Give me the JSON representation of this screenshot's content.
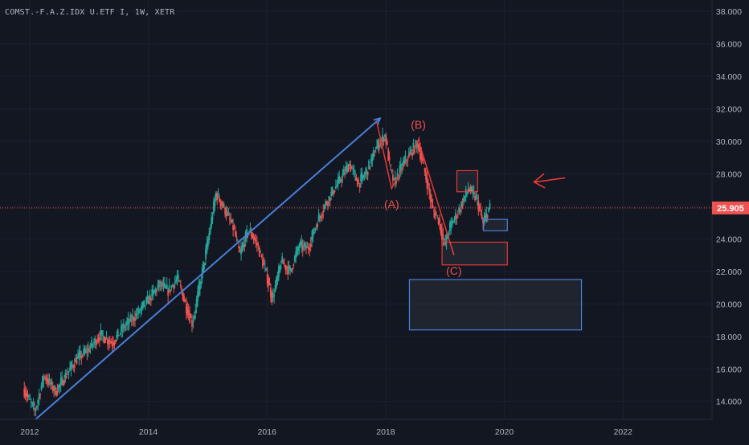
{
  "header": {
    "symbol_line": "COMST.-F.A.Z.IDX U.ETF I, 1W, XETR"
  },
  "colors": {
    "background": "#131722",
    "axis_text": "#b2b5be",
    "candle_up": "#26a69a",
    "candle_down": "#ef5350",
    "price_line": "#ef5350",
    "annotation_red": "#e53935",
    "annotation_blue": "#4a7fd8",
    "price_tag": "#ef5350"
  },
  "chart_data": {
    "type": "candlestick",
    "title": "COMST.-F.A.Z.IDX U.ETF I, 1W, XETR",
    "xlabel": "",
    "ylabel": "",
    "x_ticks": [
      "2012",
      "2014",
      "2016",
      "2018",
      "2020",
      "2022"
    ],
    "y_ticks": [
      "14.000",
      "16.000",
      "18.000",
      "20.000",
      "22.000",
      "24.000",
      "26.000",
      "28.000",
      "30.000",
      "32.000",
      "34.000",
      "36.000",
      "38.000"
    ],
    "xlim": [
      2011.5,
      2023.5
    ],
    "ylim": [
      12.9,
      38.7
    ],
    "last_price": "25.905",
    "price_path": [
      [
        2011.9,
        14.8
      ],
      [
        2012.1,
        13.4
      ],
      [
        2012.25,
        15.6
      ],
      [
        2012.45,
        14.6
      ],
      [
        2012.6,
        15.5
      ],
      [
        2012.8,
        16.6
      ],
      [
        2013.0,
        17.2
      ],
      [
        2013.2,
        18.1
      ],
      [
        2013.4,
        17.6
      ],
      [
        2013.6,
        18.6
      ],
      [
        2013.8,
        19.3
      ],
      [
        2014.0,
        20.2
      ],
      [
        2014.2,
        21.2
      ],
      [
        2014.35,
        20.8
      ],
      [
        2014.5,
        21.6
      ],
      [
        2014.65,
        19.8
      ],
      [
        2014.75,
        18.8
      ],
      [
        2014.9,
        21.6
      ],
      [
        2015.0,
        23.6
      ],
      [
        2015.15,
        26.8
      ],
      [
        2015.3,
        25.8
      ],
      [
        2015.45,
        24.6
      ],
      [
        2015.55,
        23.0
      ],
      [
        2015.7,
        24.6
      ],
      [
        2015.85,
        23.6
      ],
      [
        2016.0,
        21.8
      ],
      [
        2016.1,
        20.3
      ],
      [
        2016.25,
        22.6
      ],
      [
        2016.4,
        22.0
      ],
      [
        2016.55,
        23.6
      ],
      [
        2016.7,
        23.4
      ],
      [
        2016.85,
        25.0
      ],
      [
        2017.0,
        26.2
      ],
      [
        2017.2,
        27.4
      ],
      [
        2017.4,
        28.6
      ],
      [
        2017.55,
        27.4
      ],
      [
        2017.7,
        28.2
      ],
      [
        2017.85,
        29.6
      ],
      [
        2018.0,
        30.4
      ],
      [
        2018.08,
        28.4
      ],
      [
        2018.15,
        27.4
      ],
      [
        2018.3,
        28.6
      ],
      [
        2018.45,
        29.4
      ],
      [
        2018.55,
        29.9
      ],
      [
        2018.7,
        27.6
      ],
      [
        2018.8,
        25.8
      ],
      [
        2018.9,
        25.2
      ],
      [
        2019.0,
        23.6
      ],
      [
        2019.1,
        24.8
      ],
      [
        2019.25,
        25.8
      ],
      [
        2019.4,
        27.1
      ],
      [
        2019.55,
        26.4
      ],
      [
        2019.65,
        24.9
      ],
      [
        2019.75,
        25.9
      ]
    ],
    "annotations": [
      {
        "type": "arrow",
        "color": "blue",
        "from": [
          2012.1,
          12.9
        ],
        "to": [
          2017.9,
          31.4
        ]
      },
      {
        "type": "polyline",
        "color": "red",
        "points": [
          [
            2017.85,
            31.2
          ],
          [
            2018.1,
            27.1
          ],
          [
            2018.55,
            30.1
          ],
          [
            2019.15,
            23.0
          ]
        ]
      },
      {
        "type": "label",
        "text": "(A)",
        "at": [
          2018.1,
          25.9
        ]
      },
      {
        "type": "label",
        "text": "(B)",
        "at": [
          2018.55,
          30.8
        ]
      },
      {
        "type": "label",
        "text": "(C)",
        "at": [
          2019.15,
          21.8
        ]
      },
      {
        "type": "box",
        "color": "red",
        "x": [
          2019.2,
          2019.55
        ],
        "y": [
          26.9,
          28.2
        ]
      },
      {
        "type": "box",
        "color": "red",
        "x": [
          2018.95,
          2020.05
        ],
        "y": [
          22.4,
          23.8
        ]
      },
      {
        "type": "box",
        "color": "blue",
        "x": [
          2019.65,
          2020.05
        ],
        "y": [
          24.5,
          25.2
        ]
      },
      {
        "type": "box",
        "color": "blue",
        "x": [
          2018.4,
          2021.3
        ],
        "y": [
          18.4,
          21.5
        ]
      },
      {
        "type": "hand-arrow",
        "color": "red",
        "at": [
          2020.5,
          27.5
        ]
      }
    ]
  }
}
